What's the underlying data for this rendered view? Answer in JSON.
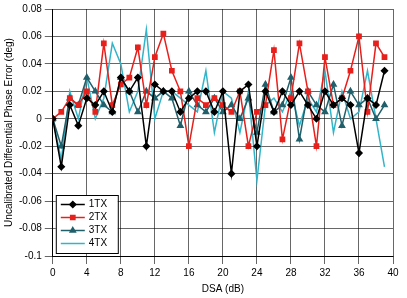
{
  "chart_data": {
    "type": "line",
    "x_label": "DSA (dB)",
    "y_label": "Uncalibrated Differential Phase Error (deg)",
    "x": [
      0,
      1,
      2,
      3,
      4,
      5,
      6,
      7,
      8,
      9,
      10,
      11,
      12,
      13,
      14,
      15,
      16,
      17,
      18,
      19,
      20,
      21,
      22,
      23,
      24,
      25,
      26,
      27,
      28,
      29,
      30,
      31,
      32,
      33,
      34,
      35,
      36,
      37,
      38,
      39
    ],
    "series": [
      {
        "name": "1TX",
        "color": "#000000",
        "marker": "diamond",
        "values": [
          0,
          -0.035,
          0.01,
          -0.005,
          0.015,
          0.01,
          0.02,
          0.005,
          0.03,
          0.02,
          0.03,
          -0.02,
          0.025,
          0.02,
          0.02,
          0.005,
          0.015,
          0.02,
          0.02,
          0.005,
          0.02,
          -0.04,
          0.02,
          0.025,
          -0.02,
          0.02,
          0.005,
          0.02,
          0.01,
          0.02,
          0.01,
          0,
          0.02,
          0.01,
          0.015,
          0.01,
          -0.025,
          0.015,
          0.01,
          0.035
        ]
      },
      {
        "name": "2TX",
        "color": "#e8201c",
        "marker": "square",
        "values": [
          0,
          0.005,
          0.015,
          0.01,
          0.02,
          0.005,
          0.055,
          0.01,
          0.025,
          0.03,
          0.052,
          0.01,
          0.045,
          0.062,
          0.035,
          0.02,
          -0.02,
          0.015,
          0.01,
          0.015,
          0.01,
          0.005,
          0.02,
          -0.02,
          0.005,
          0.01,
          0.05,
          -0.015,
          0.015,
          0.055,
          0.02,
          -0.02,
          0.045,
          0.01,
          0.015,
          0.035,
          0.06,
          0.005,
          0.055,
          0.045
        ]
      },
      {
        "name": "3TX",
        "color": "#215f6b",
        "marker": "triangle",
        "values": [
          0,
          -0.02,
          0.015,
          0.01,
          0.03,
          0.02,
          0.01,
          0.005,
          0.03,
          0.02,
          0.005,
          0.02,
          0.015,
          0.02,
          0.015,
          -0.005,
          0.02,
          0.01,
          0.005,
          0.015,
          0.005,
          0.01,
          0,
          0.015,
          -0.01,
          0.025,
          0.005,
          0.01,
          0.03,
          -0.015,
          0.02,
          0.01,
          0.005,
          0.025,
          -0.005,
          0.02,
          0.01,
          0.015,
          0,
          0.01
        ]
      },
      {
        "name": "4TX",
        "color": "#33b5c9",
        "marker": "none",
        "values": [
          0,
          -0.03,
          0.02,
          0,
          0.03,
          0,
          0.015,
          0.055,
          0.04,
          0.005,
          0.02,
          0.065,
          0,
          0.02,
          0.02,
          0.015,
          0.01,
          0.005,
          0.035,
          -0.01,
          0.02,
          0.015,
          -0.01,
          0.02,
          -0.045,
          0.01,
          0.015,
          0.005,
          0.02,
          -0.005,
          0.015,
          0.005,
          0.035,
          -0.01,
          0.02,
          0,
          0.005,
          0.035,
          0,
          -0.035
        ]
      }
    ],
    "xlim": [
      0,
      40
    ],
    "xticks": [
      0,
      4,
      8,
      12,
      16,
      20,
      24,
      28,
      32,
      36,
      40
    ],
    "ylim": [
      -0.1,
      0.08
    ],
    "yticks": [
      -0.1,
      -0.08,
      -0.06,
      -0.04,
      -0.02,
      0,
      0.02,
      0.04,
      0.06,
      0.08
    ],
    "grid": true,
    "legend": "lower left"
  }
}
